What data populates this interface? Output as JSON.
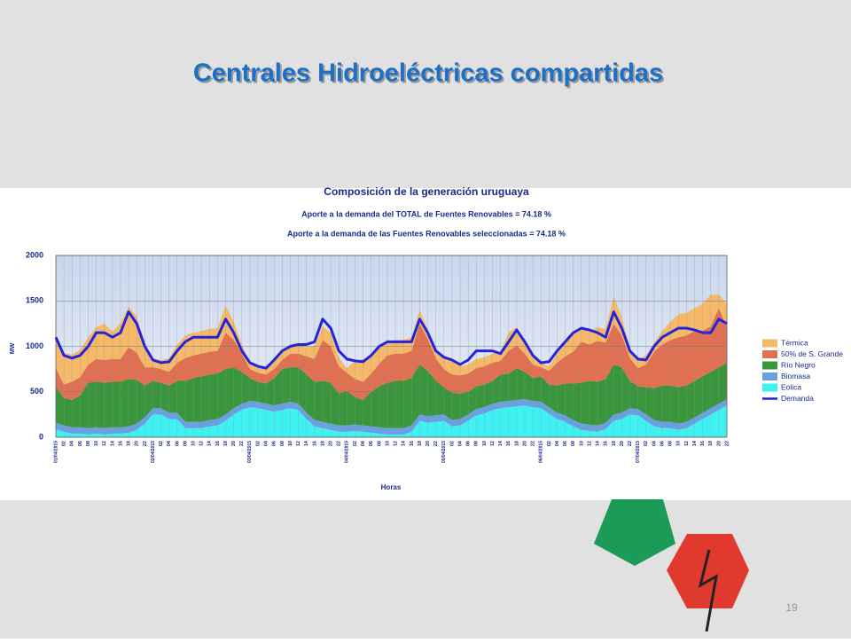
{
  "slide_title": "Centrales Hidroeléctricas compartidas",
  "page_number": "19",
  "chart_data": {
    "type": "stacked_area",
    "title": "Composición de la generación uruguaya",
    "subtitles": [
      "Aporte a la demanda del TOTAL de Fuentes Renovables =  74.18 %",
      "Aporte a la demanda de las Fuentes Renovables seleccionadas = 74.18 %"
    ],
    "x_label": "Horas",
    "y_label": "MW",
    "ylim": [
      0,
      2000
    ],
    "yticks": [
      0,
      500,
      1000,
      1500,
      2000
    ],
    "grid": true,
    "categories": [
      "01/04/2015",
      "02",
      "04",
      "06",
      "08",
      "10",
      "12",
      "14",
      "16",
      "18",
      "20",
      "22",
      "02/04/2015",
      "02",
      "04",
      "06",
      "08",
      "10",
      "12",
      "14",
      "16",
      "18",
      "20",
      "22",
      "03/04/2015",
      "02",
      "04",
      "06",
      "08",
      "10",
      "12",
      "14",
      "16",
      "18",
      "20",
      "22",
      "04/04/2015",
      "02",
      "04",
      "06",
      "08",
      "10",
      "12",
      "14",
      "16",
      "18",
      "20",
      "22",
      "05/04/2015",
      "02",
      "04",
      "06",
      "08",
      "10",
      "12",
      "14",
      "16",
      "18",
      "20",
      "22",
      "06/04/2015",
      "02",
      "04",
      "06",
      "08",
      "10",
      "12",
      "14",
      "16",
      "18",
      "20",
      "22",
      "07/04/2015",
      "02",
      "04",
      "06",
      "08",
      "10",
      "12",
      "14",
      "16",
      "18",
      "20",
      "22"
    ],
    "series": [
      {
        "name": "Eólica",
        "color": "#3ff2f2",
        "values": [
          90,
          60,
          40,
          40,
          30,
          40,
          30,
          40,
          40,
          50,
          80,
          150,
          250,
          250,
          200,
          200,
          100,
          100,
          100,
          120,
          130,
          180,
          250,
          300,
          330,
          320,
          300,
          280,
          300,
          320,
          300,
          200,
          120,
          100,
          80,
          60,
          60,
          70,
          60,
          50,
          40,
          30,
          30,
          30,
          60,
          180,
          160,
          170,
          180,
          120,
          130,
          180,
          240,
          260,
          300,
          320,
          330,
          340,
          350,
          330,
          320,
          260,
          200,
          170,
          120,
          80,
          70,
          60,
          90,
          180,
          200,
          250,
          240,
          180,
          120,
          100,
          100,
          80,
          100,
          150,
          200,
          250,
          300,
          350
        ]
      },
      {
        "name": "Biomasa",
        "color": "#6b9fe0",
        "values": [
          70,
          70,
          70,
          70,
          70,
          70,
          70,
          70,
          70,
          70,
          70,
          70,
          70,
          70,
          70,
          70,
          70,
          70,
          70,
          70,
          70,
          70,
          70,
          70,
          70,
          70,
          70,
          70,
          70,
          70,
          70,
          70,
          70,
          70,
          70,
          70,
          70,
          70,
          70,
          70,
          70,
          70,
          70,
          70,
          70,
          70,
          70,
          70,
          70,
          70,
          70,
          70,
          70,
          70,
          70,
          70,
          70,
          70,
          70,
          70,
          70,
          70,
          70,
          70,
          70,
          70,
          70,
          70,
          70,
          70,
          70,
          70,
          70,
          70,
          70,
          70,
          70,
          70,
          70,
          70,
          70,
          70,
          70,
          70
        ]
      },
      {
        "name": "Río Negro",
        "color": "#3a963a",
        "values": [
          400,
          300,
          300,
          350,
          500,
          500,
          500,
          500,
          500,
          520,
          480,
          350,
          300,
          280,
          300,
          350,
          450,
          480,
          500,
          500,
          500,
          500,
          450,
          350,
          250,
          220,
          220,
          300,
          380,
          380,
          400,
          420,
          420,
          450,
          450,
          350,
          380,
          300,
          280,
          380,
          450,
          500,
          520,
          520,
          520,
          550,
          500,
          380,
          300,
          300,
          280,
          250,
          250,
          250,
          250,
          300,
          300,
          350,
          300,
          250,
          280,
          250,
          300,
          350,
          400,
          450,
          480,
          480,
          480,
          550,
          500,
          300,
          250,
          300,
          350,
          400,
          400,
          400,
          400,
          400,
          400,
          400,
          400,
          400
        ]
      },
      {
        "name": "50% de S. Grande",
        "color": "#e0704f",
        "values": [
          200,
          150,
          200,
          200,
          200,
          250,
          250,
          250,
          250,
          350,
          300,
          200,
          150,
          150,
          150,
          200,
          250,
          250,
          250,
          250,
          250,
          400,
          300,
          200,
          100,
          100,
          100,
          100,
          100,
          150,
          150,
          200,
          250,
          450,
          400,
          300,
          200,
          200,
          200,
          200,
          250,
          300,
          300,
          300,
          300,
          450,
          350,
          250,
          200,
          200,
          200,
          200,
          200,
          200,
          200,
          150,
          250,
          250,
          200,
          150,
          100,
          150,
          250,
          300,
          350,
          450,
          400,
          450,
          400,
          450,
          350,
          250,
          200,
          250,
          400,
          450,
          500,
          550,
          550,
          550,
          500,
          500,
          650,
          400
        ]
      },
      {
        "name": "Térmica",
        "color": "#f5b968",
        "values": [
          300,
          350,
          300,
          300,
          300,
          350,
          400,
          300,
          400,
          450,
          400,
          250,
          100,
          100,
          150,
          200,
          250,
          250,
          250,
          250,
          250,
          300,
          200,
          100,
          80,
          80,
          80,
          100,
          100,
          100,
          100,
          100,
          150,
          150,
          150,
          100,
          50,
          200,
          250,
          200,
          200,
          150,
          150,
          150,
          150,
          150,
          100,
          50,
          150,
          150,
          100,
          100,
          100,
          100,
          100,
          100,
          200,
          200,
          150,
          100,
          50,
          50,
          100,
          150,
          200,
          150,
          150,
          150,
          150,
          300,
          200,
          100,
          100,
          100,
          100,
          150,
          200,
          250,
          250,
          250,
          300,
          350,
          150,
          250
        ]
      },
      {
        "name": "Demanda",
        "color": "#2424dd",
        "kind": "line",
        "values": [
          1100,
          900,
          870,
          900,
          1000,
          1150,
          1150,
          1100,
          1150,
          1380,
          1250,
          1000,
          850,
          820,
          830,
          950,
          1050,
          1100,
          1100,
          1100,
          1100,
          1300,
          1150,
          950,
          820,
          780,
          760,
          850,
          950,
          1000,
          1020,
          1020,
          1050,
          1300,
          1200,
          950,
          860,
          840,
          830,
          900,
          1000,
          1050,
          1050,
          1050,
          1050,
          1300,
          1150,
          950,
          880,
          850,
          800,
          850,
          950,
          950,
          950,
          920,
          1050,
          1180,
          1050,
          900,
          820,
          830,
          950,
          1050,
          1150,
          1200,
          1180,
          1150,
          1100,
          1380,
          1200,
          950,
          860,
          850,
          1000,
          1100,
          1150,
          1200,
          1200,
          1180,
          1150,
          1150,
          1300,
          1250
        ]
      }
    ]
  }
}
